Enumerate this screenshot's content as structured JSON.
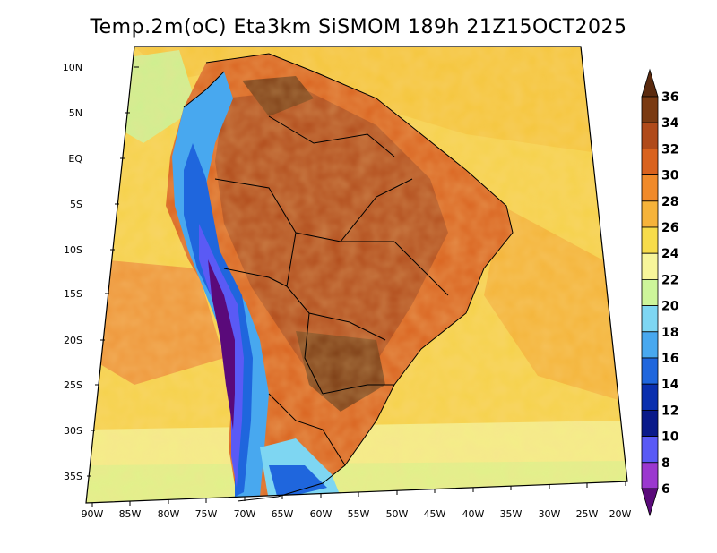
{
  "title": "Temp.2m(oC) Eta3km SiSMOM 189h 21Z15OCT2025",
  "map": {
    "lat_labels": [
      "10N",
      "5N",
      "EQ",
      "5S",
      "10S",
      "15S",
      "20S",
      "25S",
      "30S",
      "35S"
    ],
    "lon_labels": [
      "90W",
      "85W",
      "80W",
      "75W",
      "70W",
      "65W",
      "60W",
      "55W",
      "50W",
      "45W",
      "40W",
      "35W",
      "30W",
      "25W",
      "20W"
    ]
  },
  "colorbar": {
    "labels": [
      "36",
      "34",
      "32",
      "30",
      "28",
      "26",
      "24",
      "22",
      "20",
      "18",
      "16",
      "14",
      "12",
      "10",
      "8",
      "6"
    ],
    "colors": [
      "#5a2a0e",
      "#7a3a12",
      "#b04a1a",
      "#d9621e",
      "#f08a2a",
      "#f6b33a",
      "#f7dc4a",
      "#f7f59a",
      "#cdf59a",
      "#7ed6f2",
      "#48a8ef",
      "#1f66dd",
      "#0a2fae",
      "#0a1a8a",
      "#5a5af5",
      "#9b38cf",
      "#5a0a7a"
    ]
  }
}
